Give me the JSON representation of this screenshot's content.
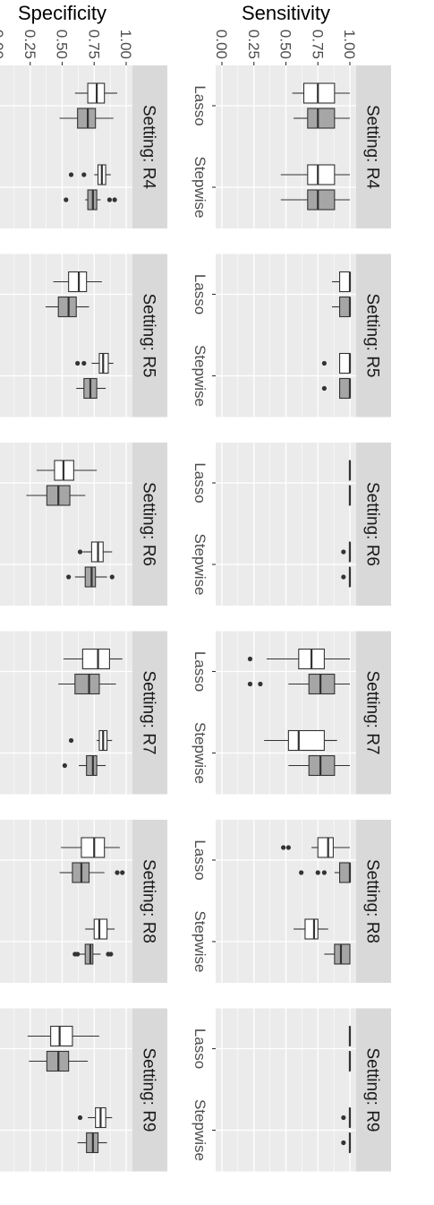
{
  "figure": {
    "panel_bg": "#ebebeb",
    "strip_bg": "#d9d9d9",
    "grid_color": "#ffffff",
    "tick_color": "#333333",
    "box_outline": "#333333",
    "outlier_color": "#333333"
  },
  "chart_data": [
    {
      "type": "boxplot",
      "ylabel": "Sensitivity",
      "ylim": [
        0,
        1
      ],
      "yticks": [
        "0.00",
        "0.25",
        "0.50",
        "0.75",
        "1.00"
      ],
      "categories": [
        "Lasso",
        "Stepwise"
      ],
      "grid": true,
      "series_fills": [
        "#ffffff",
        "#a6a6a6"
      ],
      "facets": [
        {
          "setting": "Setting: R4",
          "groups": [
            [
              {
                "q1": 0.64,
                "median": 0.75,
                "q3": 0.88,
                "lower": 0.55,
                "upper": 1.0,
                "outliers": []
              },
              {
                "q1": 0.67,
                "median": 0.75,
                "q3": 0.88,
                "lower": 0.56,
                "upper": 1.0,
                "outliers": []
              }
            ],
            [
              {
                "q1": 0.67,
                "median": 0.75,
                "q3": 0.88,
                "lower": 0.46,
                "upper": 1.0,
                "outliers": []
              },
              {
                "q1": 0.67,
                "median": 0.75,
                "q3": 0.88,
                "lower": 0.46,
                "upper": 1.0,
                "outliers": []
              }
            ]
          ]
        },
        {
          "setting": "Setting: R5",
          "groups": [
            [
              {
                "q1": 0.92,
                "median": 1.0,
                "q3": 1.0,
                "lower": 0.86,
                "upper": 1.0,
                "outliers": []
              },
              {
                "q1": 0.92,
                "median": 1.0,
                "q3": 1.0,
                "lower": 0.86,
                "upper": 1.0,
                "outliers": []
              }
            ],
            [
              {
                "q1": 0.92,
                "median": 1.0,
                "q3": 1.0,
                "lower": 0.92,
                "upper": 1.0,
                "outliers": [
                  0.8
                ]
              },
              {
                "q1": 0.92,
                "median": 1.0,
                "q3": 1.0,
                "lower": 0.92,
                "upper": 1.0,
                "outliers": [
                  0.8
                ]
              }
            ]
          ]
        },
        {
          "setting": "Setting: R6",
          "groups": [
            [
              {
                "q1": 1.0,
                "median": 1.0,
                "q3": 1.0,
                "lower": 1.0,
                "upper": 1.0,
                "outliers": []
              },
              {
                "q1": 1.0,
                "median": 1.0,
                "q3": 1.0,
                "lower": 1.0,
                "upper": 1.0,
                "outliers": []
              }
            ],
            [
              {
                "q1": 1.0,
                "median": 1.0,
                "q3": 1.0,
                "lower": 1.0,
                "upper": 1.0,
                "outliers": [
                  0.95
                ]
              },
              {
                "q1": 1.0,
                "median": 1.0,
                "q3": 1.0,
                "lower": 1.0,
                "upper": 1.0,
                "outliers": [
                  0.95
                ]
              }
            ]
          ]
        },
        {
          "setting": "Setting: R7",
          "groups": [
            [
              {
                "q1": 0.6,
                "median": 0.7,
                "q3": 0.8,
                "lower": 0.35,
                "upper": 1.0,
                "outliers": [
                  0.22
                ]
              },
              {
                "q1": 0.68,
                "median": 0.77,
                "q3": 0.88,
                "lower": 0.52,
                "upper": 1.0,
                "outliers": [
                  0.22,
                  0.3
                ]
              }
            ],
            [
              {
                "q1": 0.52,
                "median": 0.6,
                "q3": 0.8,
                "lower": 0.33,
                "upper": 0.9,
                "outliers": []
              },
              {
                "q1": 0.68,
                "median": 0.77,
                "q3": 0.88,
                "lower": 0.52,
                "upper": 1.0,
                "outliers": []
              }
            ]
          ]
        },
        {
          "setting": "Setting: R8",
          "groups": [
            [
              {
                "q1": 0.75,
                "median": 0.83,
                "q3": 0.87,
                "lower": 0.7,
                "upper": 1.0,
                "outliers": [
                  0.48,
                  0.52
                ]
              },
              {
                "q1": 0.92,
                "median": 1.0,
                "q3": 1.0,
                "lower": 0.88,
                "upper": 1.0,
                "outliers": [
                  0.62,
                  0.75,
                  0.8
                ]
              }
            ],
            [
              {
                "q1": 0.65,
                "median": 0.72,
                "q3": 0.75,
                "lower": 0.56,
                "upper": 0.83,
                "outliers": []
              },
              {
                "q1": 0.88,
                "median": 0.93,
                "q3": 1.0,
                "lower": 0.8,
                "upper": 1.0,
                "outliers": []
              }
            ]
          ]
        },
        {
          "setting": "Setting: R9",
          "groups": [
            [
              {
                "q1": 1.0,
                "median": 1.0,
                "q3": 1.0,
                "lower": 1.0,
                "upper": 1.0,
                "outliers": []
              },
              {
                "q1": 1.0,
                "median": 1.0,
                "q3": 1.0,
                "lower": 1.0,
                "upper": 1.0,
                "outliers": []
              }
            ],
            [
              {
                "q1": 1.0,
                "median": 1.0,
                "q3": 1.0,
                "lower": 1.0,
                "upper": 1.0,
                "outliers": [
                  0.95
                ]
              },
              {
                "q1": 1.0,
                "median": 1.0,
                "q3": 1.0,
                "lower": 1.0,
                "upper": 1.0,
                "outliers": [
                  0.95
                ]
              }
            ]
          ]
        }
      ]
    },
    {
      "type": "boxplot",
      "ylabel": "Specificity",
      "ylim": [
        0,
        1
      ],
      "yticks": [
        "0.00",
        "0.25",
        "0.50",
        "0.75",
        "1.00"
      ],
      "categories": [
        "Lasso",
        "Stepwise"
      ],
      "grid": true,
      "series_fills": [
        "#ffffff",
        "#a6a6a6"
      ],
      "facets": [
        {
          "setting": "Setting: R4",
          "groups": [
            [
              {
                "q1": 0.7,
                "median": 0.77,
                "q3": 0.83,
                "lower": 0.6,
                "upper": 0.93,
                "outliers": []
              },
              {
                "q1": 0.62,
                "median": 0.7,
                "q3": 0.76,
                "lower": 0.48,
                "upper": 0.9,
                "outliers": []
              }
            ],
            [
              {
                "q1": 0.78,
                "median": 0.81,
                "q3": 0.84,
                "lower": 0.75,
                "upper": 0.88,
                "outliers": [
                  0.57,
                  0.67
                ]
              },
              {
                "q1": 0.7,
                "median": 0.74,
                "q3": 0.77,
                "lower": 0.68,
                "upper": 0.8,
                "outliers": [
                  0.53,
                  0.87,
                  0.91
                ]
              }
            ]
          ]
        },
        {
          "setting": "Setting: R5",
          "groups": [
            [
              {
                "q1": 0.55,
                "median": 0.63,
                "q3": 0.69,
                "lower": 0.43,
                "upper": 0.81,
                "outliers": []
              },
              {
                "q1": 0.47,
                "median": 0.55,
                "q3": 0.61,
                "lower": 0.37,
                "upper": 0.71,
                "outliers": []
              }
            ],
            [
              {
                "q1": 0.79,
                "median": 0.82,
                "q3": 0.86,
                "lower": 0.73,
                "upper": 0.9,
                "outliers": [
                  0.62,
                  0.67
                ]
              },
              {
                "q1": 0.67,
                "median": 0.72,
                "q3": 0.77,
                "lower": 0.61,
                "upper": 0.84,
                "outliers": []
              }
            ]
          ]
        },
        {
          "setting": "Setting: R6",
          "groups": [
            [
              {
                "q1": 0.44,
                "median": 0.51,
                "q3": 0.59,
                "lower": 0.3,
                "upper": 0.77,
                "outliers": []
              },
              {
                "q1": 0.38,
                "median": 0.47,
                "q3": 0.56,
                "lower": 0.22,
                "upper": 0.68,
                "outliers": []
              }
            ],
            [
              {
                "q1": 0.73,
                "median": 0.78,
                "q3": 0.82,
                "lower": 0.66,
                "upper": 0.89,
                "outliers": [
                  0.64
                ]
              },
              {
                "q1": 0.68,
                "median": 0.73,
                "q3": 0.76,
                "lower": 0.6,
                "upper": 0.85,
                "outliers": [
                  0.55,
                  0.89
                ]
              }
            ]
          ]
        },
        {
          "setting": "Setting: R7",
          "groups": [
            [
              {
                "q1": 0.66,
                "median": 0.78,
                "q3": 0.87,
                "lower": 0.51,
                "upper": 0.97,
                "outliers": []
              },
              {
                "q1": 0.6,
                "median": 0.71,
                "q3": 0.79,
                "lower": 0.47,
                "upper": 0.92,
                "outliers": []
              }
            ],
            [
              {
                "q1": 0.79,
                "median": 0.82,
                "q3": 0.85,
                "lower": 0.77,
                "upper": 0.89,
                "outliers": [
                  0.57
                ]
              },
              {
                "q1": 0.69,
                "median": 0.74,
                "q3": 0.77,
                "lower": 0.63,
                "upper": 0.84,
                "outliers": [
                  0.52
                ]
              }
            ]
          ]
        },
        {
          "setting": "Setting: R8",
          "groups": [
            [
              {
                "q1": 0.65,
                "median": 0.75,
                "q3": 0.83,
                "lower": 0.49,
                "upper": 0.95,
                "outliers": []
              },
              {
                "q1": 0.58,
                "median": 0.65,
                "q3": 0.71,
                "lower": 0.48,
                "upper": 0.83,
                "outliers": [
                  0.93,
                  0.97
                ]
              }
            ],
            [
              {
                "q1": 0.75,
                "median": 0.79,
                "q3": 0.85,
                "lower": 0.68,
                "upper": 0.91,
                "outliers": []
              },
              {
                "q1": 0.68,
                "median": 0.72,
                "q3": 0.74,
                "lower": 0.61,
                "upper": 0.8,
                "outliers": [
                  0.6,
                  0.62,
                  0.86,
                  0.88
                ]
              }
            ]
          ]
        },
        {
          "setting": "Setting: R9",
          "groups": [
            [
              {
                "q1": 0.41,
                "median": 0.48,
                "q3": 0.58,
                "lower": 0.23,
                "upper": 0.79,
                "outliers": []
              },
              {
                "q1": 0.38,
                "median": 0.47,
                "q3": 0.55,
                "lower": 0.24,
                "upper": 0.7,
                "outliers": []
              }
            ],
            [
              {
                "q1": 0.76,
                "median": 0.8,
                "q3": 0.84,
                "lower": 0.7,
                "upper": 0.89,
                "outliers": [
                  0.64
                ]
              },
              {
                "q1": 0.69,
                "median": 0.74,
                "q3": 0.78,
                "lower": 0.62,
                "upper": 0.85,
                "outliers": []
              }
            ]
          ]
        }
      ]
    }
  ]
}
